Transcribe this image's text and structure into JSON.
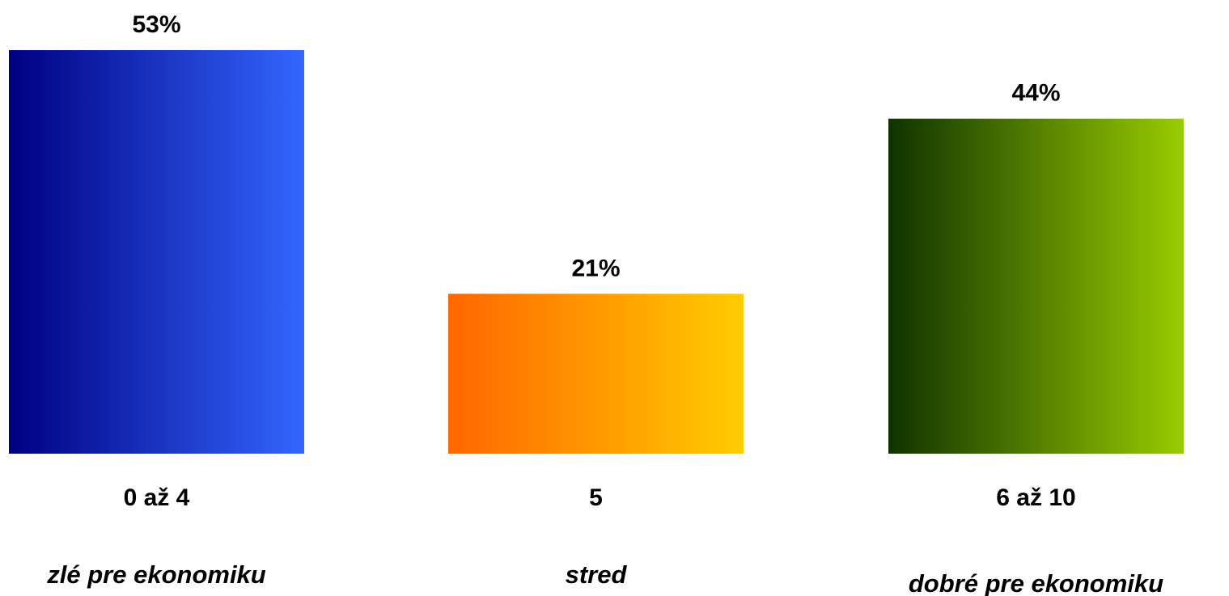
{
  "chart_data": {
    "type": "bar",
    "categories": [
      "0 až 4",
      "5",
      "6 až 10"
    ],
    "descriptions": [
      "zlé pre ekonomiku",
      "stred",
      "dobré pre ekonomiku"
    ],
    "values": [
      53,
      21,
      44
    ],
    "value_labels": [
      "53%",
      "21%",
      "44%"
    ],
    "ylim": [
      0,
      53
    ],
    "grid": false,
    "legend": "none",
    "bar_colors": [
      {
        "from": "#000080",
        "to": "#3366ff"
      },
      {
        "from": "#ff6600",
        "to": "#ffcc00"
      },
      {
        "from": "#0f3300",
        "to": "#99cc00"
      }
    ]
  }
}
